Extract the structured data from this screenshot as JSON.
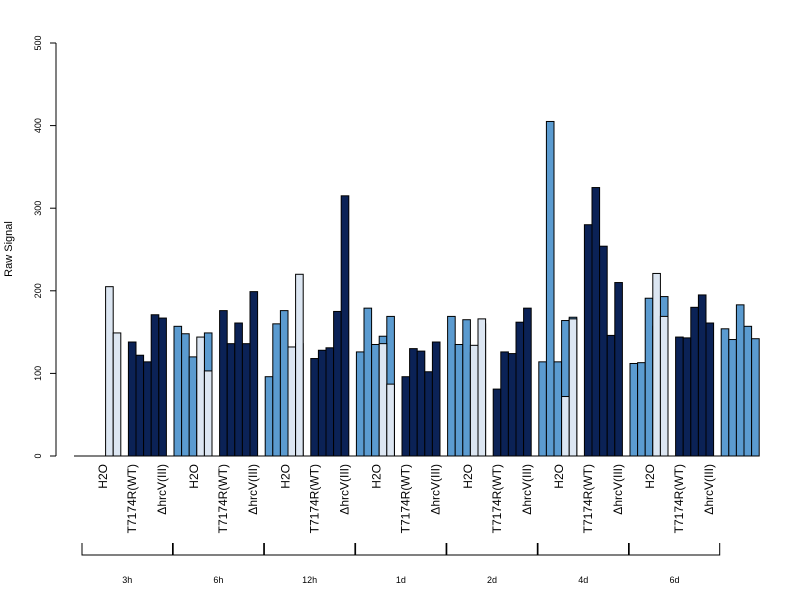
{
  "chart_data": {
    "type": "bar",
    "ylabel": "Raw Signal",
    "ylim": [
      0,
      500
    ],
    "yticks": [
      0,
      100,
      200,
      300,
      400,
      500
    ],
    "grid": false,
    "conditions": [
      "H2O",
      "T7174R(WT)",
      "ΔhrcV(III)"
    ],
    "condition_colors": [
      "#DCE6F2",
      "#0B2256",
      "#5B9BD0"
    ],
    "groups": [
      {
        "label": "3h",
        "series": [
          {
            "condition": "H2O",
            "values": [
              0,
              205,
              149
            ]
          },
          {
            "condition": "T7174R(WT)",
            "values": [
              138,
              122,
              114,
              171,
              167
            ]
          },
          {
            "condition": "ΔhrcV(III)",
            "values": [
              157,
              148,
              120,
              92,
              149
            ]
          }
        ]
      },
      {
        "label": "6h",
        "series": [
          {
            "condition": "H2O",
            "values": [
              0,
              144,
              103
            ]
          },
          {
            "condition": "T7174R(WT)",
            "values": [
              176,
              136,
              161,
              136,
              199
            ]
          },
          {
            "condition": "ΔhrcV(III)",
            "values": [
              96,
              160,
              176,
              112,
              136
            ]
          }
        ]
      },
      {
        "label": "12h",
        "series": [
          {
            "condition": "H2O",
            "values": [
              0,
              132,
              220
            ]
          },
          {
            "condition": "T7174R(WT)",
            "values": [
              118,
              128,
              131,
              175,
              315
            ]
          },
          {
            "condition": "ΔhrcV(III)",
            "values": [
              126,
              179,
              135,
              145,
              169
            ]
          }
        ]
      },
      {
        "label": "1d",
        "series": [
          {
            "condition": "H2O",
            "values": [
              0,
              136,
              87
            ]
          },
          {
            "condition": "T7174R(WT)",
            "values": [
              96,
              130,
              127,
              102,
              138
            ]
          },
          {
            "condition": "ΔhrcV(III)",
            "values": [
              169,
              135,
              165,
              125,
              160
            ]
          }
        ]
      },
      {
        "label": "2d",
        "series": [
          {
            "condition": "H2O",
            "values": [
              0,
              134,
              166
            ]
          },
          {
            "condition": "T7174R(WT)",
            "values": [
              81,
              126,
              124,
              162,
              179
            ]
          },
          {
            "condition": "ΔhrcV(III)",
            "values": [
              114,
              405,
              114,
              164,
              168
            ]
          }
        ]
      },
      {
        "label": "4d",
        "series": [
          {
            "condition": "H2O",
            "values": [
              0,
              72,
              166
            ]
          },
          {
            "condition": "T7174R(WT)",
            "values": [
              280,
              325,
              254,
              146,
              210
            ]
          },
          {
            "condition": "ΔhrcV(III)",
            "values": [
              112,
              113,
              191,
              157,
              193
            ]
          }
        ]
      },
      {
        "label": "6d",
        "series": [
          {
            "condition": "H2O",
            "values": [
              0,
              221,
              169
            ]
          },
          {
            "condition": "T7174R(WT)",
            "values": [
              144,
              143,
              180,
              195,
              161
            ]
          },
          {
            "condition": "ΔhrcV(III)",
            "values": [
              154,
              141,
              183,
              157,
              142
            ]
          }
        ]
      }
    ]
  }
}
